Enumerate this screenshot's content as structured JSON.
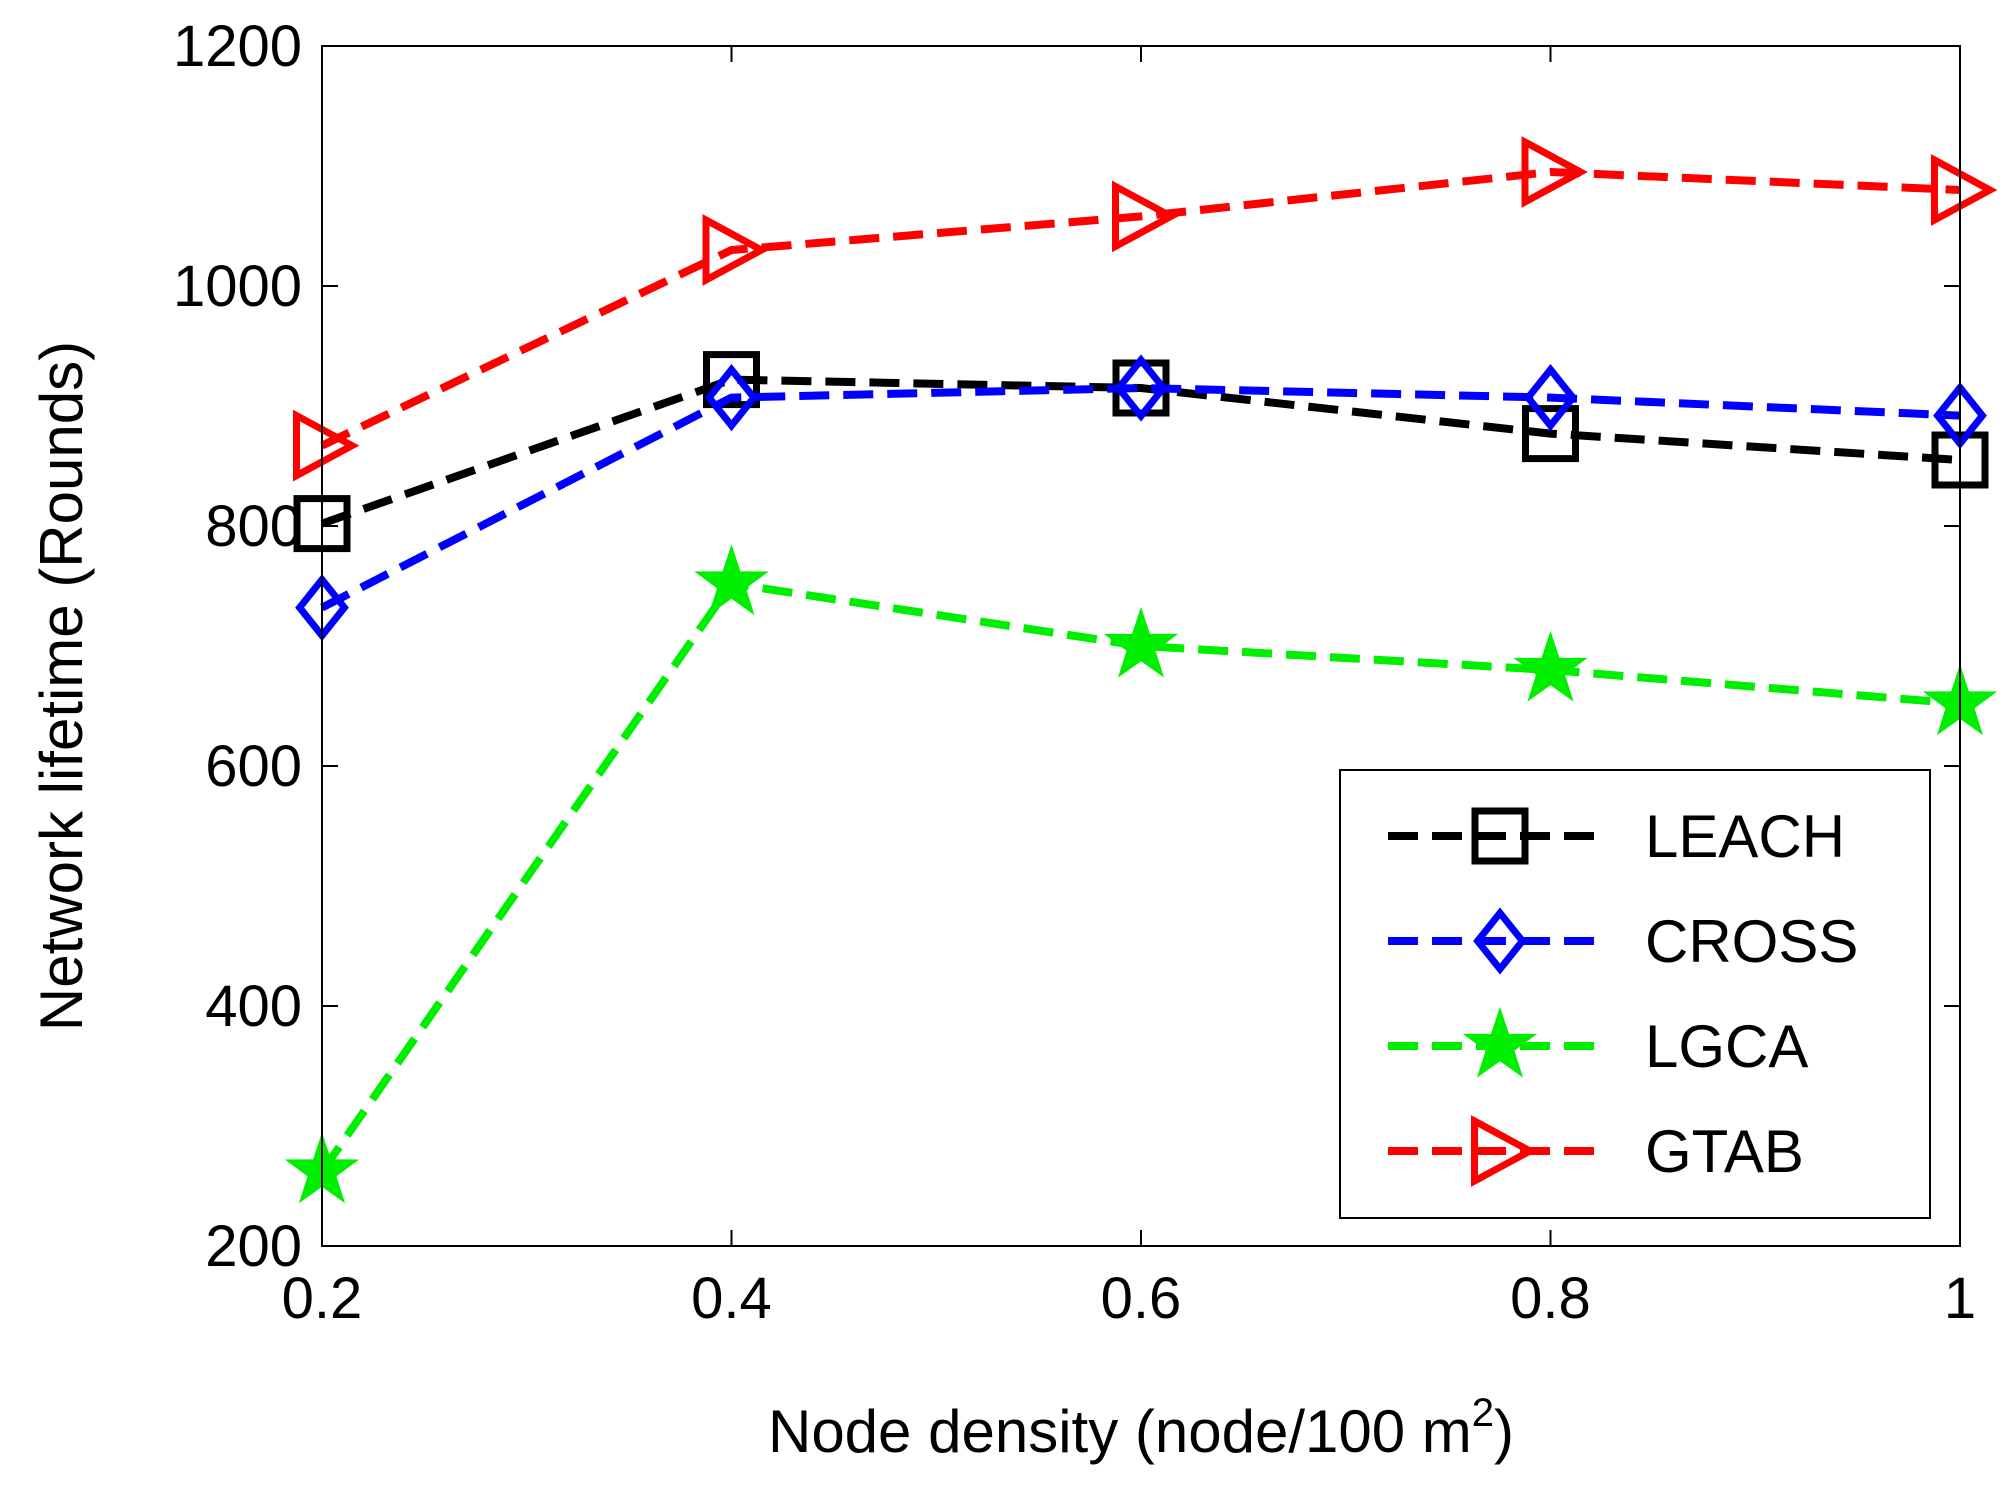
{
  "chart_data": {
    "type": "line",
    "title": "",
    "xlabel": "Node density (node/100 m",
    "xlabel_superscript": "2",
    "xlabel_suffix": ")",
    "ylabel": "Network lifetime (Rounds)",
    "x": [
      0.2,
      0.4,
      0.6,
      0.8,
      1.0
    ],
    "xlim": [
      0.2,
      1.0
    ],
    "ylim": [
      200,
      1200
    ],
    "xticks": [
      "0.2",
      "0.4",
      "0.6",
      "0.8",
      "1"
    ],
    "xtick_values": [
      0.2,
      0.4,
      0.6,
      0.8,
      1.0
    ],
    "yticks": [
      "200",
      "400",
      "600",
      "800",
      "1000",
      "1200"
    ],
    "ytick_values": [
      200,
      400,
      600,
      800,
      1000,
      1200
    ],
    "grid": false,
    "legend_position": "bottom-right",
    "series": [
      {
        "name": "LEACH",
        "color": "#000000",
        "marker": "square",
        "values": [
          802,
          922,
          915,
          877,
          855
        ]
      },
      {
        "name": "CROSS",
        "color": "#0000ff",
        "marker": "diamond",
        "values": [
          732,
          907,
          915,
          907,
          892
        ]
      },
      {
        "name": "LGCA",
        "color": "#00ee00",
        "marker": "star",
        "values": [
          262,
          752,
          700,
          680,
          652
        ]
      },
      {
        "name": "GTAB",
        "color": "#ff0000",
        "marker": "triangle-right",
        "values": [
          867,
          1030,
          1058,
          1095,
          1080
        ]
      }
    ]
  }
}
